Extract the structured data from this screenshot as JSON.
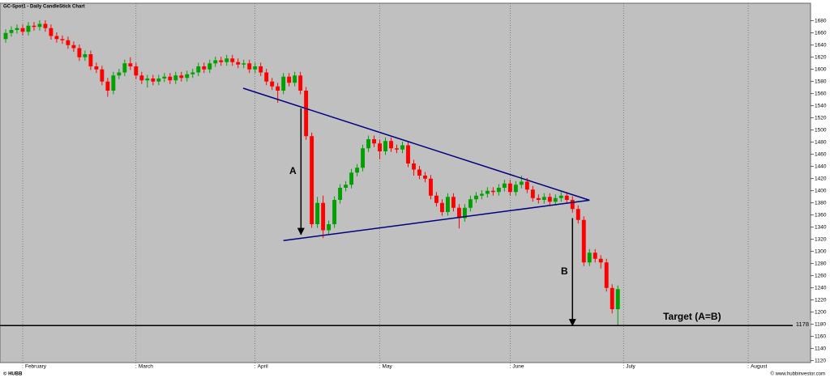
{
  "chart_data": {
    "type": "candlestick",
    "title": "GC-Spot1 - Daily CandleStick Chart",
    "up_color": "#00a000",
    "down_color": "#ff0000",
    "open": [
      1650,
      1660,
      1665,
      1668,
      1662,
      1672,
      1670,
      1675,
      1668,
      1655,
      1650,
      1648,
      1640,
      1635,
      1620,
      1625,
      1605,
      1600,
      1580,
      1565,
      1590,
      1595,
      1610,
      1605,
      1590,
      1582,
      1585,
      1580,
      1585,
      1588,
      1582,
      1590,
      1586,
      1592,
      1595,
      1605,
      1600,
      1610,
      1615,
      1612,
      1618,
      1612,
      1608,
      1610,
      1600,
      1605,
      1595,
      1580,
      1572,
      1565,
      1588,
      1578,
      1590,
      1565,
      1490,
      1345,
      1380,
      1335,
      1345,
      1385,
      1405,
      1410,
      1430,
      1438,
      1470,
      1485,
      1478,
      1465,
      1482,
      1470,
      1468,
      1475,
      1445,
      1435,
      1425,
      1420,
      1392,
      1380,
      1365,
      1390,
      1372,
      1355,
      1372,
      1386,
      1392,
      1395,
      1400,
      1398,
      1405,
      1412,
      1398,
      1410,
      1415,
      1402,
      1388,
      1385,
      1390,
      1382,
      1388,
      1392,
      1385,
      1370,
      1352,
      1282,
      1298,
      1288,
      1282,
      1240,
      1205
    ],
    "high": [
      1666,
      1671,
      1674,
      1674,
      1678,
      1678,
      1681,
      1681,
      1674,
      1661,
      1656,
      1654,
      1646,
      1641,
      1631,
      1631,
      1611,
      1606,
      1586,
      1596,
      1601,
      1616,
      1620,
      1611,
      1596,
      1591,
      1591,
      1591,
      1594,
      1594,
      1596,
      1596,
      1598,
      1601,
      1611,
      1611,
      1616,
      1621,
      1621,
      1624,
      1624,
      1618,
      1616,
      1616,
      1611,
      1611,
      1601,
      1586,
      1578,
      1594,
      1594,
      1596,
      1596,
      1571,
      1496,
      1390,
      1392,
      1351,
      1391,
      1411,
      1416,
      1436,
      1444,
      1476,
      1491,
      1491,
      1484,
      1488,
      1488,
      1476,
      1481,
      1481,
      1451,
      1441,
      1431,
      1426,
      1398,
      1386,
      1396,
      1396,
      1378,
      1378,
      1392,
      1398,
      1401,
      1406,
      1406,
      1411,
      1418,
      1418,
      1416,
      1425,
      1421,
      1408,
      1394,
      1396,
      1396,
      1394,
      1398,
      1398,
      1391,
      1376,
      1358,
      1304,
      1304,
      1294,
      1288,
      1246,
      1244
    ],
    "low": [
      1644,
      1654,
      1659,
      1656,
      1656,
      1664,
      1664,
      1662,
      1649,
      1644,
      1642,
      1634,
      1629,
      1614,
      1614,
      1599,
      1594,
      1574,
      1555,
      1559,
      1584,
      1589,
      1599,
      1584,
      1576,
      1570,
      1574,
      1574,
      1579,
      1576,
      1576,
      1580,
      1580,
      1586,
      1589,
      1594,
      1594,
      1604,
      1606,
      1606,
      1606,
      1602,
      1602,
      1594,
      1594,
      1589,
      1574,
      1566,
      1545,
      1559,
      1572,
      1572,
      1559,
      1484,
      1339,
      1339,
      1322,
      1329,
      1339,
      1379,
      1399,
      1404,
      1424,
      1432,
      1464,
      1472,
      1452,
      1459,
      1464,
      1462,
      1462,
      1439,
      1425,
      1419,
      1414,
      1386,
      1374,
      1359,
      1359,
      1366,
      1338,
      1349,
      1366,
      1380,
      1386,
      1389,
      1392,
      1392,
      1399,
      1392,
      1392,
      1404,
      1396,
      1382,
      1379,
      1379,
      1376,
      1376,
      1382,
      1379,
      1364,
      1346,
      1276,
      1276,
      1282,
      1272,
      1234,
      1198,
      1178
    ],
    "close": [
      1660,
      1665,
      1668,
      1662,
      1672,
      1670,
      1675,
      1668,
      1655,
      1650,
      1648,
      1640,
      1635,
      1620,
      1625,
      1605,
      1600,
      1580,
      1565,
      1590,
      1595,
      1610,
      1605,
      1590,
      1582,
      1585,
      1580,
      1585,
      1588,
      1582,
      1590,
      1586,
      1592,
      1595,
      1605,
      1600,
      1610,
      1615,
      1612,
      1618,
      1612,
      1608,
      1610,
      1600,
      1605,
      1595,
      1580,
      1572,
      1565,
      1588,
      1578,
      1590,
      1565,
      1490,
      1345,
      1380,
      1335,
      1345,
      1385,
      1405,
      1410,
      1430,
      1438,
      1470,
      1485,
      1478,
      1465,
      1482,
      1470,
      1468,
      1475,
      1445,
      1435,
      1425,
      1420,
      1392,
      1380,
      1365,
      1390,
      1372,
      1355,
      1372,
      1386,
      1392,
      1395,
      1400,
      1398,
      1405,
      1412,
      1398,
      1410,
      1415,
      1402,
      1388,
      1385,
      1390,
      1382,
      1388,
      1392,
      1385,
      1370,
      1352,
      1282,
      1298,
      1288,
      1282,
      1240,
      1205,
      1238
    ],
    "xlim": [
      -1,
      142
    ],
    "xticks": [
      {
        "value": 3,
        "label": "February"
      },
      {
        "value": 23,
        "label": "March"
      },
      {
        "value": 44,
        "label": "April"
      },
      {
        "value": 66,
        "label": "May"
      },
      {
        "value": 89,
        "label": "June"
      },
      {
        "value": 109,
        "label": "July"
      },
      {
        "value": 131,
        "label": "August"
      }
    ],
    "ylim": [
      1117,
      1709
    ],
    "yticks": [
      1120,
      1140,
      1160,
      1180,
      1200,
      1220,
      1240,
      1260,
      1280,
      1300,
      1320,
      1340,
      1360,
      1380,
      1400,
      1420,
      1440,
      1460,
      1480,
      1500,
      1520,
      1540,
      1560,
      1580,
      1600,
      1620,
      1640,
      1660,
      1680
    ],
    "hline": 1178,
    "trendlines": [
      {
        "x": [
          41.9,
          103
        ],
        "y": [
          1569,
          1384.5
        ]
      },
      {
        "x": [
          49,
          103
        ],
        "y": [
          1318,
          1384.5
        ]
      }
    ],
    "arrows": [
      {
        "label": "A",
        "x": 52.1,
        "y": [
          1536,
          1328
        ]
      },
      {
        "label": "B",
        "x": 100,
        "y": [
          1355,
          1178
        ]
      }
    ],
    "target": {
      "text": "Target (A=B)",
      "x": 121.1,
      "y": 1192
    },
    "footer_left": "© HUBB",
    "footer_right": "© www.hubbinvestor.com"
  }
}
